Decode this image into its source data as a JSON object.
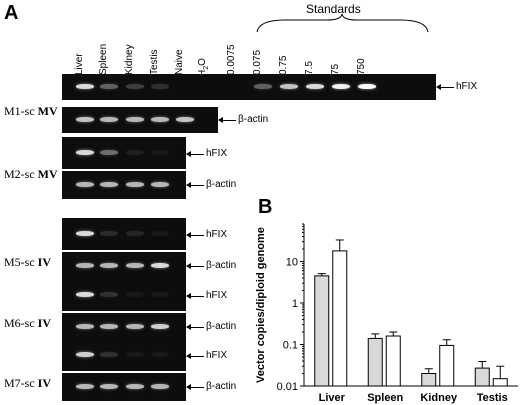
{
  "panel_a": {
    "letter": "A",
    "lanes": [
      "Liver",
      "Spleen",
      "Kidney",
      "Testis",
      "Naive",
      "H2O",
      "0.0075",
      "0.075",
      "0.75",
      "7.5",
      "75",
      "750"
    ],
    "standards_label": "Standards",
    "rows": [
      {
        "prefix": "M1-sc ",
        "suffix": "MV"
      },
      {
        "prefix": "M2-sc ",
        "suffix": "MV"
      },
      {
        "prefix": "M5-sc ",
        "suffix": "IV"
      },
      {
        "prefix": "M6-sc ",
        "suffix": "IV"
      },
      {
        "prefix": "M7-sc ",
        "suffix": "IV"
      }
    ],
    "band_labels": {
      "hfix": "hFIX",
      "actin": "β-actin"
    }
  },
  "panel_b": {
    "letter": "B",
    "chart_data": {
      "type": "bar",
      "categories": [
        "Liver",
        "Spleen",
        "Kidney",
        "Testis"
      ],
      "series": [
        {
          "values": [
            4.5,
            0.14,
            0.02,
            0.027
          ],
          "errors": [
            0.6,
            0.04,
            0.006,
            0.012
          ],
          "color": "#d9d9d9"
        },
        {
          "values": [
            18,
            0.16,
            0.095,
            0.015
          ],
          "errors": [
            15,
            0.04,
            0.035,
            0.015
          ],
          "color": "#ffffff"
        }
      ],
      "ylabel": "Vector copies/diploid genome",
      "yscale": "log",
      "ylim": [
        0.01,
        80
      ],
      "yticks": [
        0.01,
        0.1,
        1,
        10
      ],
      "ytick_labels": [
        "0.01",
        "0.1",
        "1",
        "10"
      ]
    }
  }
}
